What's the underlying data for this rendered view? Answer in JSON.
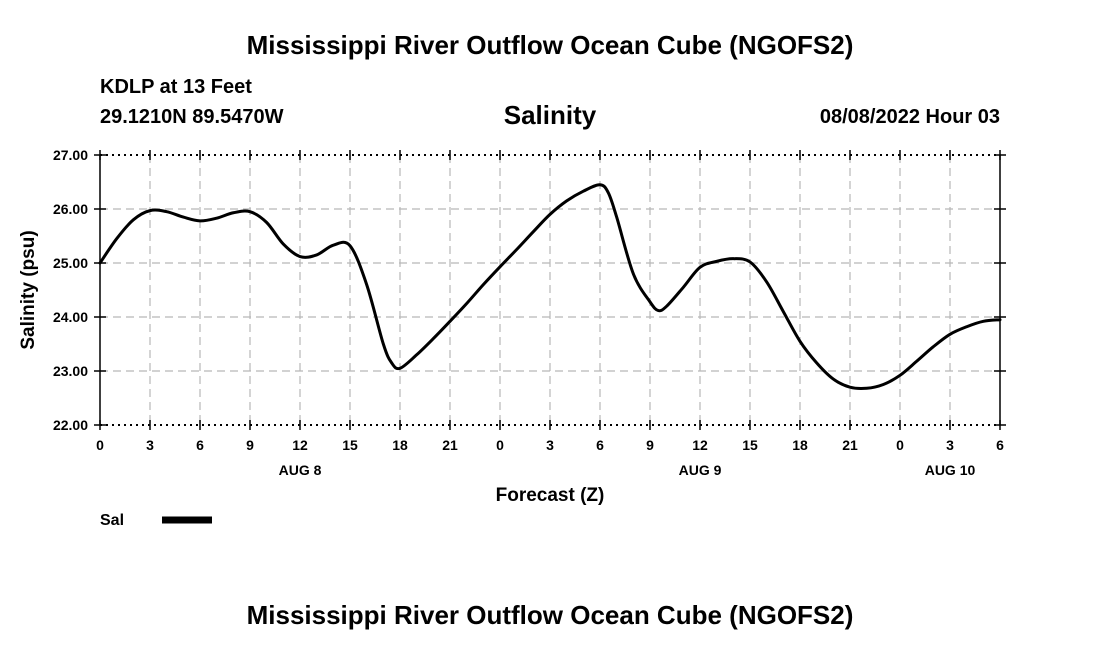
{
  "header": {
    "main_title": "Mississippi River Outflow Ocean Cube (NGOFS2)",
    "station_name": "KDLP at 13 Feet",
    "station_coords": "29.1210N  89.5470W",
    "chart_title": "Salinity",
    "run_time": "08/08/2022 Hour 03"
  },
  "footer": {
    "bottom_title": "Mississippi River Outflow Ocean Cube (NGOFS2)"
  },
  "chart_data": {
    "type": "line",
    "title": "Salinity",
    "xlabel": "Forecast (Z)",
    "ylabel": "Salinity (psu)",
    "xlim": [
      0,
      54
    ],
    "ylim": [
      22.0,
      27.0
    ],
    "grid": true,
    "legend_position": "bottom-left",
    "x_tick_values": [
      0,
      3,
      6,
      9,
      12,
      15,
      18,
      21,
      24,
      27,
      30,
      33,
      36,
      39,
      42,
      45,
      48,
      51,
      54
    ],
    "x_tick_labels": [
      "0",
      "3",
      "6",
      "9",
      "12",
      "15",
      "18",
      "21",
      "0",
      "3",
      "6",
      "9",
      "12",
      "15",
      "18",
      "21",
      "0",
      "3",
      "6"
    ],
    "y_tick_values": [
      22.0,
      23.0,
      24.0,
      25.0,
      26.0,
      27.0
    ],
    "y_tick_labels": [
      "22.00",
      "23.00",
      "24.00",
      "25.00",
      "26.00",
      "27.00"
    ],
    "day_labels": [
      {
        "x": 12,
        "label": "AUG 8"
      },
      {
        "x": 36,
        "label": "AUG 9"
      },
      {
        "x": 51,
        "label": "AUG 10"
      }
    ],
    "series": [
      {
        "name": "Sal",
        "color": "#000000",
        "points": [
          [
            0,
            25.0
          ],
          [
            1,
            25.45
          ],
          [
            2,
            25.8
          ],
          [
            3,
            25.97
          ],
          [
            4,
            25.95
          ],
          [
            5,
            25.85
          ],
          [
            6,
            25.78
          ],
          [
            7,
            25.83
          ],
          [
            8,
            25.93
          ],
          [
            9,
            25.95
          ],
          [
            10,
            25.75
          ],
          [
            11,
            25.35
          ],
          [
            12,
            25.12
          ],
          [
            13,
            25.15
          ],
          [
            14,
            25.33
          ],
          [
            15,
            25.32
          ],
          [
            16,
            24.6
          ],
          [
            17,
            23.5
          ],
          [
            17.5,
            23.15
          ],
          [
            18,
            23.05
          ],
          [
            19,
            23.3
          ],
          [
            20,
            23.6
          ],
          [
            21,
            23.92
          ],
          [
            22,
            24.25
          ],
          [
            23,
            24.6
          ],
          [
            24,
            24.93
          ],
          [
            25,
            25.25
          ],
          [
            26,
            25.58
          ],
          [
            27,
            25.9
          ],
          [
            28,
            26.15
          ],
          [
            29,
            26.33
          ],
          [
            30,
            26.45
          ],
          [
            30.5,
            26.3
          ],
          [
            31,
            25.85
          ],
          [
            32,
            24.8
          ],
          [
            33,
            24.28
          ],
          [
            33.5,
            24.12
          ],
          [
            34,
            24.2
          ],
          [
            35,
            24.55
          ],
          [
            36,
            24.92
          ],
          [
            37,
            25.03
          ],
          [
            38,
            25.08
          ],
          [
            39,
            25.02
          ],
          [
            40,
            24.65
          ],
          [
            41,
            24.1
          ],
          [
            42,
            23.55
          ],
          [
            43,
            23.15
          ],
          [
            44,
            22.85
          ],
          [
            45,
            22.7
          ],
          [
            46,
            22.68
          ],
          [
            47,
            22.75
          ],
          [
            48,
            22.92
          ],
          [
            49,
            23.18
          ],
          [
            50,
            23.45
          ],
          [
            51,
            23.68
          ],
          [
            52,
            23.82
          ],
          [
            53,
            23.92
          ],
          [
            54,
            23.95
          ]
        ]
      }
    ]
  }
}
